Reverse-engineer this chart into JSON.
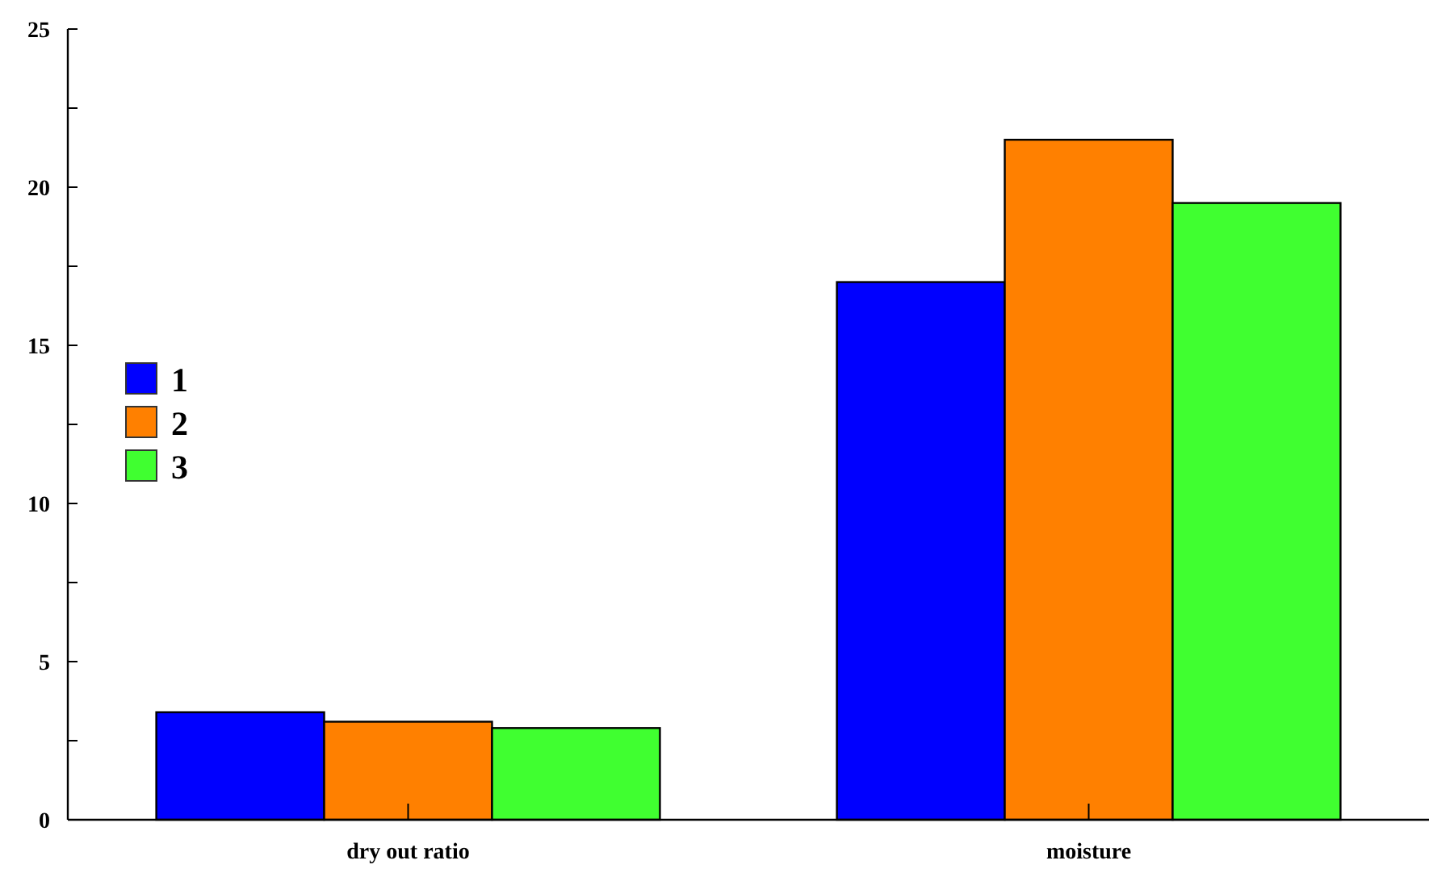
{
  "chart_data": {
    "type": "bar",
    "categories": [
      "dry out ratio",
      "moisture"
    ],
    "series": [
      {
        "name": "1",
        "color": "#0000ff",
        "values": [
          3.4,
          17.0
        ]
      },
      {
        "name": "2",
        "color": "#ff8000",
        "values": [
          3.1,
          21.5
        ]
      },
      {
        "name": "3",
        "color": "#40ff30",
        "values": [
          2.9,
          19.5
        ]
      }
    ],
    "ylim": [
      0,
      25
    ],
    "yticks": [
      0,
      {
        "value": 2.5,
        "label": null
      },
      5,
      {
        "value": 7.5,
        "label": null
      },
      10,
      {
        "value": 12.5,
        "label": null
      },
      15,
      {
        "value": 17.5,
        "label": null
      },
      20,
      {
        "value": 22.5,
        "label": null
      },
      25
    ],
    "legend": "left",
    "grid": false
  }
}
